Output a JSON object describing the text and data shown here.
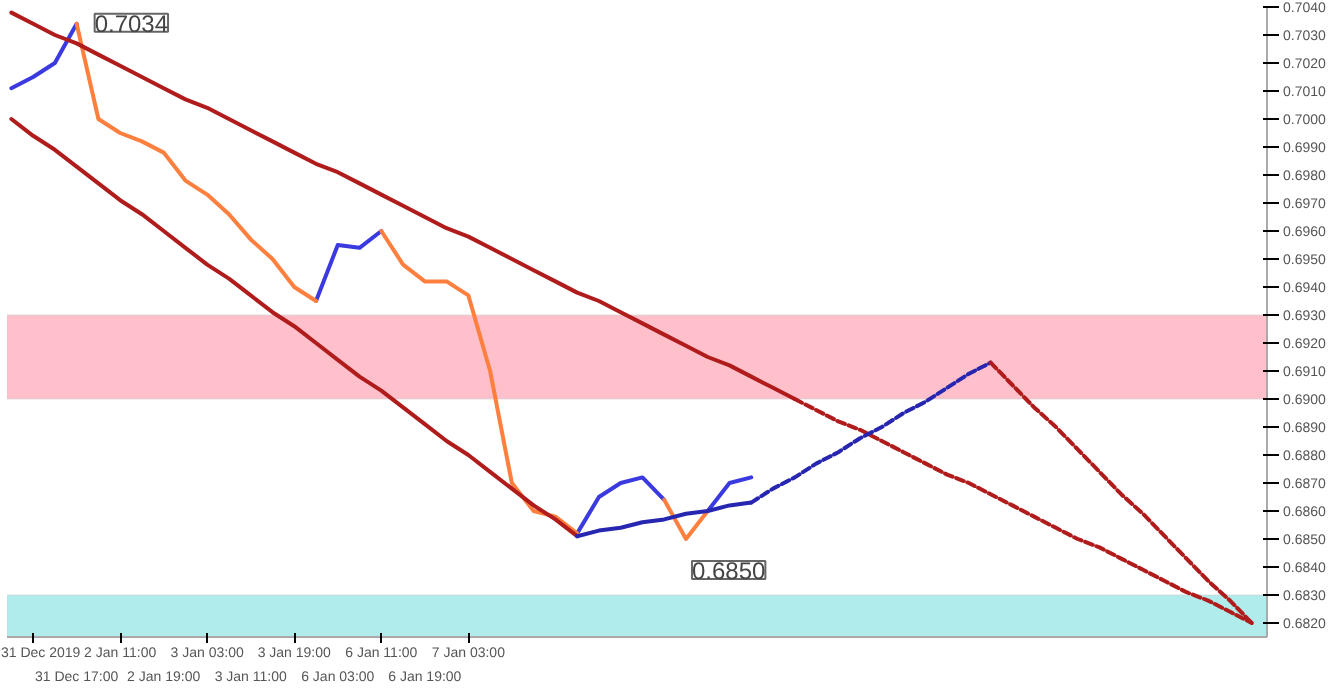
{
  "chart_data": {
    "type": "line",
    "marker": "none",
    "grid": false,
    "categories": [
      null,
      "31 Dec 2019",
      null,
      "31 Dec 17:00",
      null,
      "2 Jan 11:00",
      null,
      "2 Jan 19:00",
      null,
      "3 Jan 03:00",
      null,
      "3 Jan 11:00",
      null,
      "3 Jan 19:00",
      null,
      "6 Jan 03:00",
      null,
      "6 Jan 11:00",
      null,
      "6 Jan 19:00",
      null,
      "7 Jan 03:00",
      null,
      null,
      null,
      null,
      null,
      null,
      null,
      null,
      null,
      null,
      null,
      null,
      null,
      null,
      null,
      null,
      null,
      null,
      null,
      null,
      null,
      null,
      null,
      null,
      null,
      null,
      null,
      null,
      null,
      null,
      null,
      null,
      null,
      null,
      null,
      null
    ],
    "ylim": [
      0.6815,
      0.704
    ],
    "yticks": [
      {
        "value": 0.682,
        "label": "0.6820"
      },
      {
        "value": 0.683,
        "label": "0.6830"
      },
      {
        "value": 0.684,
        "label": "0.6840"
      },
      {
        "value": 0.685,
        "label": "0.6850"
      },
      {
        "value": 0.686,
        "label": "0.6860"
      },
      {
        "value": 0.687,
        "label": "0.6870"
      },
      {
        "value": 0.688,
        "label": "0.6880"
      },
      {
        "value": 0.689,
        "label": "0.6890"
      },
      {
        "value": 0.69,
        "label": "0.6900"
      },
      {
        "value": 0.691,
        "label": "0.6910"
      },
      {
        "value": 0.692,
        "label": "0.6920"
      },
      {
        "value": 0.693,
        "label": "0.6930"
      },
      {
        "value": 0.694,
        "label": "0.6940"
      },
      {
        "value": 0.695,
        "label": "0.6950"
      },
      {
        "value": 0.696,
        "label": "0.6960"
      },
      {
        "value": 0.697,
        "label": "0.6970"
      },
      {
        "value": 0.698,
        "label": "0.6980"
      },
      {
        "value": 0.699,
        "label": "0.6990"
      },
      {
        "value": 0.7,
        "label": "0.7000"
      },
      {
        "value": 0.701,
        "label": "0.7010"
      },
      {
        "value": 0.702,
        "label": "0.7020"
      },
      {
        "value": 0.703,
        "label": "0.7030"
      },
      {
        "value": 0.704,
        "label": "0.7040"
      }
    ],
    "bands": [
      {
        "axis": "y",
        "from": 0.69,
        "to": 0.693,
        "color": "#ffc0cb"
      },
      {
        "axis": "y",
        "from": 0.6815,
        "to": 0.683,
        "color": "#b0ecec"
      }
    ],
    "series": [
      {
        "color": "#3a3ae0",
        "values": [
          0.7011,
          0.7015,
          0.702,
          0.7034,
          null,
          null,
          null,
          null,
          null,
          null,
          null,
          null,
          null,
          null,
          0.6935,
          0.6955,
          0.6954,
          0.696,
          null,
          null,
          null,
          null,
          null,
          null,
          null,
          null,
          0.6852,
          0.6865,
          0.687,
          0.6872,
          0.6864,
          null,
          0.686,
          0.687,
          0.6872,
          null,
          null,
          null,
          null,
          null,
          null,
          null,
          null,
          null,
          null,
          null,
          null,
          null,
          null,
          null,
          null,
          null,
          null,
          null,
          null,
          null,
          null,
          null
        ]
      },
      {
        "color": "#ff7f3f",
        "values": [
          null,
          null,
          null,
          0.7034,
          0.7,
          0.6995,
          0.6992,
          0.6988,
          0.6978,
          0.6973,
          0.6966,
          0.6957,
          0.695,
          0.694,
          0.6935,
          null,
          null,
          0.696,
          0.6948,
          0.6942,
          0.6942,
          0.6937,
          0.691,
          0.687,
          0.686,
          0.6858,
          0.6852,
          null,
          null,
          null,
          0.6864,
          0.685,
          0.686,
          null,
          null,
          null,
          null,
          null,
          null,
          null,
          null,
          null,
          null,
          null,
          null,
          null,
          null,
          null,
          null,
          null,
          null,
          null,
          null,
          null,
          null,
          null,
          null,
          null
        ]
      },
      {
        "color": "#b01c1c",
        "values": [
          0.7038,
          0.7034,
          0.703,
          0.7027,
          0.7023,
          0.7019,
          0.7015,
          0.7011,
          0.7007,
          0.7004,
          0.7,
          0.6996,
          0.6992,
          0.6988,
          0.6984,
          0.6981,
          0.6977,
          0.6973,
          0.6969,
          0.6965,
          0.6961,
          0.6958,
          0.6954,
          0.695,
          0.6946,
          0.6942,
          0.6938,
          0.6935,
          0.6931,
          0.6927,
          0.6923,
          0.6919,
          0.6915,
          0.6912,
          0.6908,
          0.6904,
          0.69,
          null,
          null,
          null,
          null,
          null,
          null,
          null,
          null,
          null,
          null,
          null,
          null,
          null,
          null,
          null,
          null,
          null,
          null,
          null,
          null,
          null
        ]
      },
      {
        "color": "#b01c1c",
        "line_style": "dashed",
        "values": [
          null,
          null,
          null,
          null,
          null,
          null,
          null,
          null,
          null,
          null,
          null,
          null,
          null,
          null,
          null,
          null,
          null,
          null,
          null,
          null,
          null,
          null,
          null,
          null,
          null,
          null,
          null,
          null,
          null,
          null,
          null,
          null,
          null,
          null,
          null,
          null,
          0.69,
          0.6896,
          0.6892,
          0.6889,
          0.6885,
          0.6881,
          0.6877,
          0.6873,
          0.687,
          0.6866,
          0.6862,
          0.6858,
          0.6854,
          0.685,
          0.6847,
          0.6843,
          0.6839,
          0.6835,
          0.6831,
          0.6828,
          0.6824,
          0.682
        ]
      },
      {
        "color": "#b01c1c",
        "values": [
          0.7,
          0.6994,
          0.6989,
          0.6983,
          0.6977,
          0.6971,
          0.6966,
          0.696,
          0.6954,
          0.6948,
          0.6943,
          0.6937,
          0.6931,
          0.6926,
          0.692,
          0.6914,
          0.6908,
          0.6903,
          0.6897,
          0.6891,
          0.6885,
          0.688,
          0.6874,
          0.6868,
          0.6862,
          0.6857,
          0.6851,
          null,
          null,
          null,
          null,
          null,
          null,
          null,
          null,
          null,
          null,
          null,
          null,
          null,
          null,
          null,
          null,
          null,
          null,
          null,
          null,
          null,
          null,
          null,
          null,
          null,
          null,
          null,
          null,
          null,
          null,
          null
        ]
      },
      {
        "color": "#2626b0",
        "values": [
          null,
          null,
          null,
          null,
          null,
          null,
          null,
          null,
          null,
          null,
          null,
          null,
          null,
          null,
          null,
          null,
          null,
          null,
          null,
          null,
          null,
          null,
          null,
          null,
          null,
          null,
          0.6851,
          0.6853,
          0.6854,
          0.6856,
          0.6857,
          0.6859,
          0.686,
          0.6862,
          0.6863,
          null,
          null,
          null,
          null,
          null,
          null,
          null,
          null,
          null,
          null,
          null,
          null,
          null,
          null,
          null,
          null,
          null,
          null,
          null,
          null,
          null,
          null,
          null
        ]
      },
      {
        "color": "#2626b0",
        "line_style": "dashed",
        "values": [
          null,
          null,
          null,
          null,
          null,
          null,
          null,
          null,
          null,
          null,
          null,
          null,
          null,
          null,
          null,
          null,
          null,
          null,
          null,
          null,
          null,
          null,
          null,
          null,
          null,
          null,
          null,
          null,
          null,
          null,
          null,
          null,
          null,
          null,
          0.6863,
          0.6868,
          0.6872,
          0.6877,
          0.6881,
          0.6886,
          0.689,
          0.6895,
          0.6899,
          0.6904,
          0.6909,
          0.6913,
          null,
          null,
          null,
          null,
          null,
          null,
          null,
          null,
          null,
          null,
          null,
          null
        ]
      },
      {
        "color": "#b01c1c",
        "line_style": "dashed",
        "values": [
          null,
          null,
          null,
          null,
          null,
          null,
          null,
          null,
          null,
          null,
          null,
          null,
          null,
          null,
          null,
          null,
          null,
          null,
          null,
          null,
          null,
          null,
          null,
          null,
          null,
          null,
          null,
          null,
          null,
          null,
          null,
          null,
          null,
          null,
          null,
          null,
          null,
          null,
          null,
          null,
          null,
          null,
          null,
          null,
          null,
          0.6913,
          0.6905,
          0.6897,
          0.689,
          0.6882,
          0.6874,
          0.6866,
          0.6859,
          0.6851,
          0.6843,
          0.6835,
          0.6828,
          0.682
        ]
      }
    ],
    "annotations": [
      "0.7034",
      "0.6850"
    ]
  }
}
